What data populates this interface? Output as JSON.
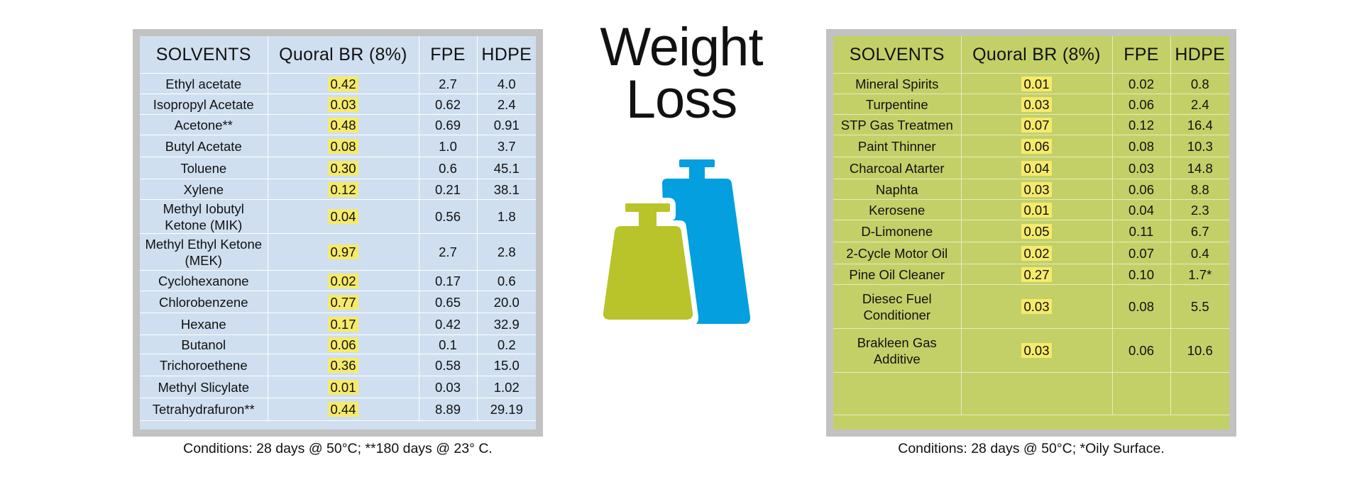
{
  "title": {
    "line1": "Weight",
    "line2": "Loss"
  },
  "colors": {
    "left_panel_bg": "#cfdff0",
    "right_panel_bg": "#c3d068",
    "panel_frame": "#c2c2c2",
    "highlight": "#f6ea6b",
    "weight_green": "#b8c42a",
    "weight_blue": "#049fdf"
  },
  "icons": {
    "weights": "weights-icon"
  },
  "left_table": {
    "headers": [
      "SOLVENTS",
      "Quoral BR (8%)",
      "FPE",
      "HDPE"
    ],
    "rows": [
      [
        "Ethyl acetate",
        "0.42",
        "2.7",
        "4.0"
      ],
      [
        "Isopropyl Acetate",
        "0.03",
        "0.62",
        "2.4"
      ],
      [
        "Acetone**",
        "0.48",
        "0.69",
        "0.91"
      ],
      [
        "Butyl Acetate",
        "0.08",
        "1.0",
        "3.7"
      ],
      [
        "Toluene",
        "0.30",
        "0.6",
        "45.1"
      ],
      [
        "Xylene",
        "0.12",
        "0.21",
        "38.1"
      ],
      [
        "Methyl Iobutyl Ketone (MIK)",
        "0.04",
        "0.56",
        "1.8"
      ],
      [
        "Methyl Ethyl Ketone (MEK)",
        "0.97",
        "2.7",
        "2.8"
      ],
      [
        "Cyclohexanone",
        "0.02",
        "0.17",
        "0.6"
      ],
      [
        "Chlorobenzene",
        "0.77",
        "0.65",
        "20.0"
      ],
      [
        "Hexane",
        "0.17",
        "0.42",
        "32.9"
      ],
      [
        "Butanol",
        "0.06",
        "0.1",
        "0.2"
      ],
      [
        "Trichoroethene",
        "0.36",
        "0.58",
        "15.0"
      ],
      [
        "Methyl Slicylate",
        "0.01",
        "0.03",
        "1.02"
      ],
      [
        "Tetrahydrafuron**",
        "0.44",
        "8.89",
        "29.19"
      ]
    ],
    "conditions": "Conditions: 28 days @ 50°C; **180 days @ 23° C."
  },
  "right_table": {
    "headers": [
      "SOLVENTS",
      "Quoral BR (8%)",
      "FPE",
      "HDPE"
    ],
    "rows": [
      [
        "Mineral Spirits",
        "0.01",
        "0.02",
        "0.8"
      ],
      [
        "Turpentine",
        "0.03",
        "0.06",
        "2.4"
      ],
      [
        "STP Gas Treatmen",
        "0.07",
        "0.12",
        "16.4"
      ],
      [
        "Paint Thinner",
        "0.06",
        "0.08",
        "10.3"
      ],
      [
        "Charcoal Atarter",
        "0.04",
        "0.03",
        "14.8"
      ],
      [
        "Naphta",
        "0.03",
        "0.06",
        "8.8"
      ],
      [
        "Kerosene",
        "0.01",
        "0.04",
        "2.3"
      ],
      [
        "D-Limonene",
        "0.05",
        "0.11",
        "6.7"
      ],
      [
        "2-Cycle Motor Oil",
        "0.02",
        "0.07",
        "0.4"
      ],
      [
        "Pine Oil Cleaner",
        "0.27",
        "0.10",
        "1.7*"
      ],
      [
        "Diesec Fuel Conditioner",
        "0.03",
        "0.08",
        "5.5"
      ],
      [
        "Brakleen Gas Additive",
        "0.03",
        "0.06",
        "10.6"
      ]
    ],
    "conditions": "Conditions: 28 days @ 50°C; *Oily Surface."
  }
}
